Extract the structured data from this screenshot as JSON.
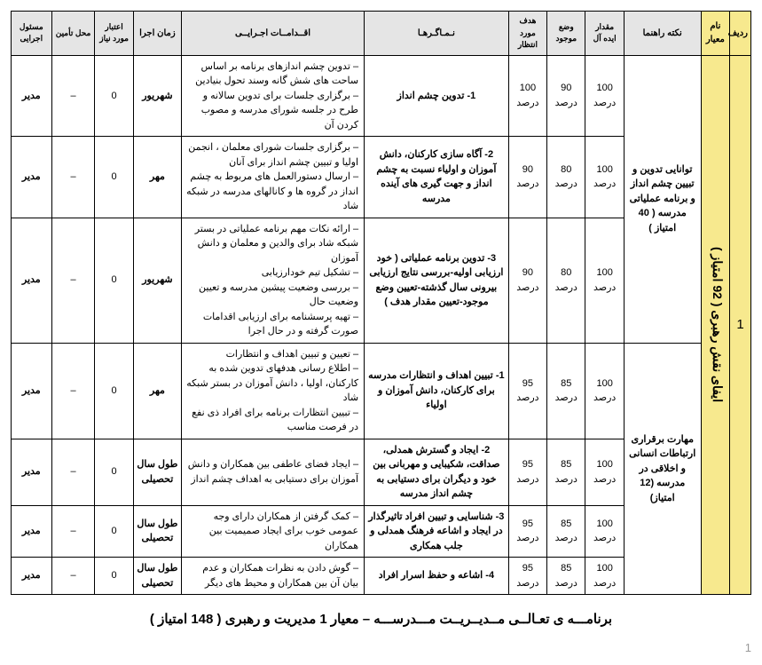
{
  "headers": {
    "radif": "ردیف",
    "mehvar": "نام معیار",
    "rahnama": "نکته راهنما",
    "ideal": "مقدار ایده آل",
    "mojood": "وضع موجود",
    "hadaf": "هدف مورد انتظار",
    "nama": "نـمـاگـرهـا",
    "eqdam": "اقــدامــات اجـرایــی",
    "zaman": "زمان اجرا",
    "etebar": "اعتبار مورد نیاز",
    "mahal": "محل تأمین",
    "masool": "مسئول اجرایی"
  },
  "radif": "1",
  "mehvar": "ایفای نقش رهبری ( 92 امتیاز )",
  "rahnama1": "توانایی تدوین و تبیین چشم انداز و برنامه عملیاتی مدرسه ( 40 امتیاز )",
  "rahnama2": "مهارت برقراری ارتباطات انسانی و اخلاقی در مدرسه (12 امتیاز)",
  "rows": [
    {
      "ideal": "100 درصد",
      "mojood": "90 درصد",
      "hadaf": "100 درصد",
      "nama": "1- تدوین چشم انداز",
      "eqdam": "– تدوین چشم اندازهای برنامه بر اساس ساحت های شش گانه وسند تحول بنیادین\n– برگزاری جلسات برای تدوین سالانه و طرح در جلسه شورای مدرسه و مصوب کردن آن",
      "zaman": "شهریور",
      "etebar": "0",
      "mahal": "–",
      "masool": "مدیر"
    },
    {
      "ideal": "100 درصد",
      "mojood": "80 درصد",
      "hadaf": "90 درصد",
      "nama": "2- آگاه سازی کارکنان، دانش آموزان و اولیاء نسبت به چشم انداز و جهت گیری های آینده مدرسه",
      "eqdam": "– برگزاری جلسات شورای معلمان ، انجمن اولیا و تبیین چشم انداز برای آنان\n– ارسال دستورالعمل های مربوط به چشم انداز در گروه ها و کانالهای مدرسه در شبکه شاد",
      "zaman": "مهر",
      "etebar": "0",
      "mahal": "–",
      "masool": "مدیر"
    },
    {
      "ideal": "100 درصد",
      "mojood": "80 درصد",
      "hadaf": "90 درصد",
      "nama": "3- تدوین برنامه عملیاتی ( خود ارزیابی اولیه-بررسی نتایج ارزیابی بیرونی سال گذشته-تعیین وضع موجود-تعیین مقدار هدف )",
      "eqdam": "– ارائه نکات مهم برنامه عملیاتی در بستر شبکه شاد برای والدین و معلمان و دانش آموزان\n– تشکیل تیم خودارزیابی\n– بررسی وضعیت پیشین مدرسه و تعیین وضعیت حال\n– تهیه پرسشنامه برای ارزیابی اقدامات صورت گرفته و در حال اجرا",
      "zaman": "شهریور",
      "etebar": "0",
      "mahal": "–",
      "masool": "مدیر"
    },
    {
      "ideal": "100 درصد",
      "mojood": "85 درصد",
      "hadaf": "95 درصد",
      "nama": "1- تبیین اهداف و انتظارات مدرسه برای کارکنان، دانش آموزان و اولیاء",
      "eqdam": "– تعیین و تبیین اهداف و انتظارات\n– اطلاع رسانی هدفهای تدوین شده به کارکنان، اولیا ، دانش آموزان در بستر شبکه شاد\n– تبیین انتظارات برنامه برای افراد ذی نفع در فرصت مناسب",
      "zaman": "مهر",
      "etebar": "0",
      "mahal": "–",
      "masool": "مدیر"
    },
    {
      "ideal": "100 درصد",
      "mojood": "85 درصد",
      "hadaf": "95 درصد",
      "nama": "2- ایجاد و گسترش همدلی، صداقت، شکیبایی و مهربانی بین خود و دیگران برای دستیابی به چشم انداز مدرسه",
      "eqdam": "– ایجاد فضای عاطفی بین همکاران و دانش آموزان برای دستیابی به اهداف چشم انداز",
      "zaman": "طول سال تحصیلی",
      "etebar": "0",
      "mahal": "–",
      "masool": "مدیر"
    },
    {
      "ideal": "100 درصد",
      "mojood": "85 درصد",
      "hadaf": "95 درصد",
      "nama": "3- شناسایی و تبیین افراد تاثیرگذار در ایجاد و اشاعه فرهنگ همدلی و جلب همکاری",
      "eqdam": "– کمک گرفتن از همکاران دارای وجه عمومی خوب برای ایجاد صمیمیت بین همکاران",
      "zaman": "طول سال تحصیلی",
      "etebar": "0",
      "mahal": "–",
      "masool": "مدیر"
    },
    {
      "ideal": "100 درصد",
      "mojood": "85 درصد",
      "hadaf": "95 درصد",
      "nama": "4- اشاعه و حفظ اسرار افراد",
      "eqdam": "– گوش دادن به نظرات همکاران و عدم بیان آن بین همکاران و محیط های دیگر",
      "zaman": "طول سال تحصیلی",
      "etebar": "0",
      "mahal": "–",
      "masool": "مدیر"
    }
  ],
  "footer": "برنامـــه ی تعـالــی مــدیــریــت مـــدرســـه  –  معیار 1 مدیریت و رهبری ( 148 امتیاز )",
  "pagenum": "1"
}
